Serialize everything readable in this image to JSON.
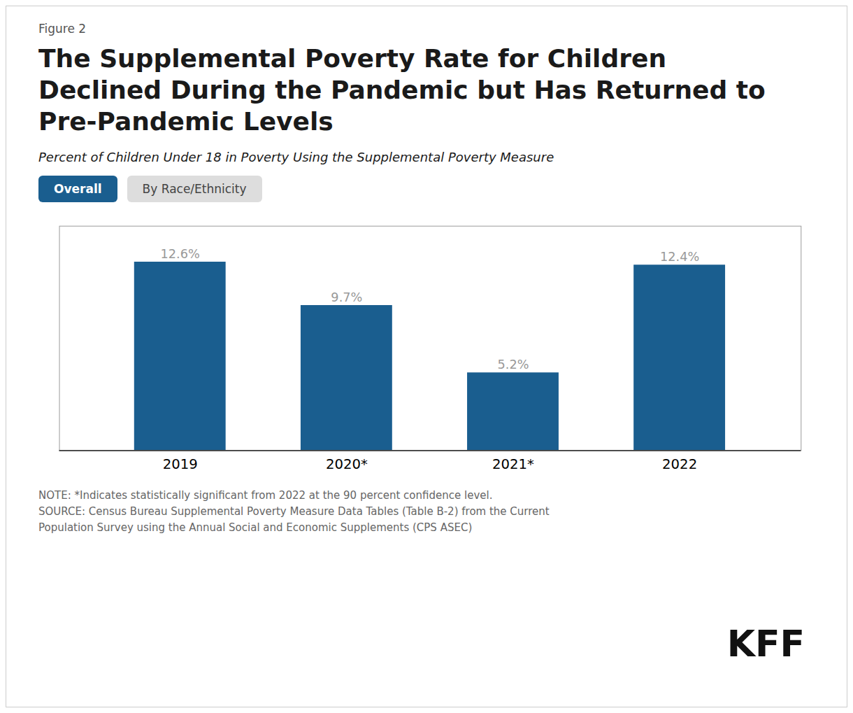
{
  "chart_data": {
    "type": "bar",
    "figure_label": "Figure 2",
    "title": "The Supplemental Poverty Rate for Children\nDeclined During the Pandemic but Has Returned to\nPre-Pandemic Levels",
    "subtitle": "Percent of Children Under 18 in Poverty Using the Supplemental Poverty Measure",
    "tabs": [
      "Overall",
      "By Race/Ethnicity"
    ],
    "categories": [
      "2019",
      "2020*",
      "2021*",
      "2022"
    ],
    "values": [
      12.6,
      9.7,
      5.2,
      12.4
    ],
    "value_labels": [
      "12.6%",
      "9.7%",
      "5.2%",
      "12.4%"
    ],
    "data_labels": true,
    "color": "#1A5E8F",
    "ylim": [
      0,
      15
    ],
    "tick_labels": "x",
    "grid": false,
    "notes": [
      "NOTE: *Indicates statistically significant from 2022 at the 90 percent confidence level.",
      "SOURCE: Census Bureau Supplemental Poverty Measure Data Tables (Table B-2) from the Current",
      "Population Survey using the Annual Social and Economic Supplements (CPS ASEC)"
    ],
    "logo": "KFF"
  }
}
